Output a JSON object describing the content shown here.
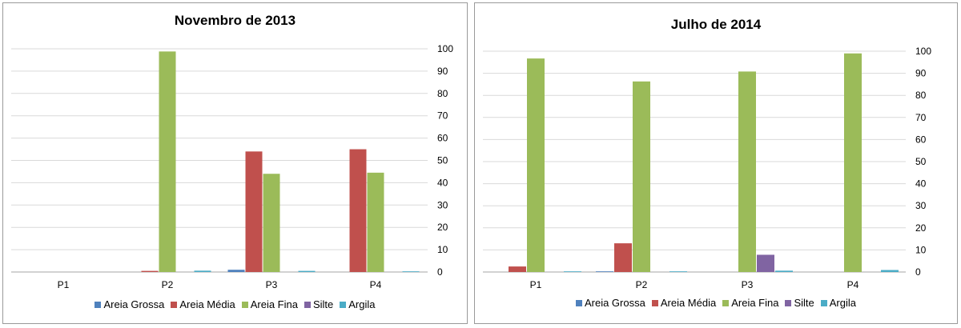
{
  "chart_data": [
    {
      "type": "bar",
      "title": "Novembro de 2013",
      "categories": [
        "P1",
        "P2",
        "P3",
        "P4"
      ],
      "ylim": [
        0,
        100
      ],
      "yticks": [
        0,
        10,
        20,
        30,
        40,
        50,
        60,
        70,
        80,
        90,
        100
      ],
      "y_axis_side": "right",
      "grid": true,
      "legend_position": "bottom",
      "series": [
        {
          "name": "Areia Grossa",
          "color": "#4f81bd",
          "values": [
            0,
            0,
            1,
            0
          ]
        },
        {
          "name": "Areia Média",
          "color": "#c0504d",
          "values": [
            0,
            0.5,
            54,
            55
          ]
        },
        {
          "name": "Areia Fina",
          "color": "#9bbb59",
          "values": [
            0,
            98.8,
            44,
            44.5
          ]
        },
        {
          "name": "Silte",
          "color": "#8064a2",
          "values": [
            0,
            0,
            0,
            0
          ]
        },
        {
          "name": "Argila",
          "color": "#4bacc6",
          "values": [
            0,
            0.6,
            0.5,
            0.3
          ]
        }
      ]
    },
    {
      "type": "bar",
      "title": "Julho de 2014",
      "categories": [
        "P1",
        "P2",
        "P3",
        "P4"
      ],
      "ylim": [
        0,
        100
      ],
      "yticks": [
        0,
        10,
        20,
        30,
        40,
        50,
        60,
        70,
        80,
        90,
        100
      ],
      "y_axis_side": "right",
      "grid": true,
      "legend_position": "bottom",
      "series": [
        {
          "name": "Areia Grossa",
          "color": "#4f81bd",
          "values": [
            0,
            0.3,
            0,
            0
          ]
        },
        {
          "name": "Areia Média",
          "color": "#c0504d",
          "values": [
            2.5,
            13,
            0,
            0
          ]
        },
        {
          "name": "Areia Fina",
          "color": "#9bbb59",
          "values": [
            96.7,
            86.3,
            90.8,
            99
          ]
        },
        {
          "name": "Silte",
          "color": "#8064a2",
          "values": [
            0,
            0,
            7.8,
            0
          ]
        },
        {
          "name": "Argila",
          "color": "#4bacc6",
          "values": [
            0.3,
            0.3,
            0.6,
            0.9
          ]
        }
      ]
    }
  ]
}
